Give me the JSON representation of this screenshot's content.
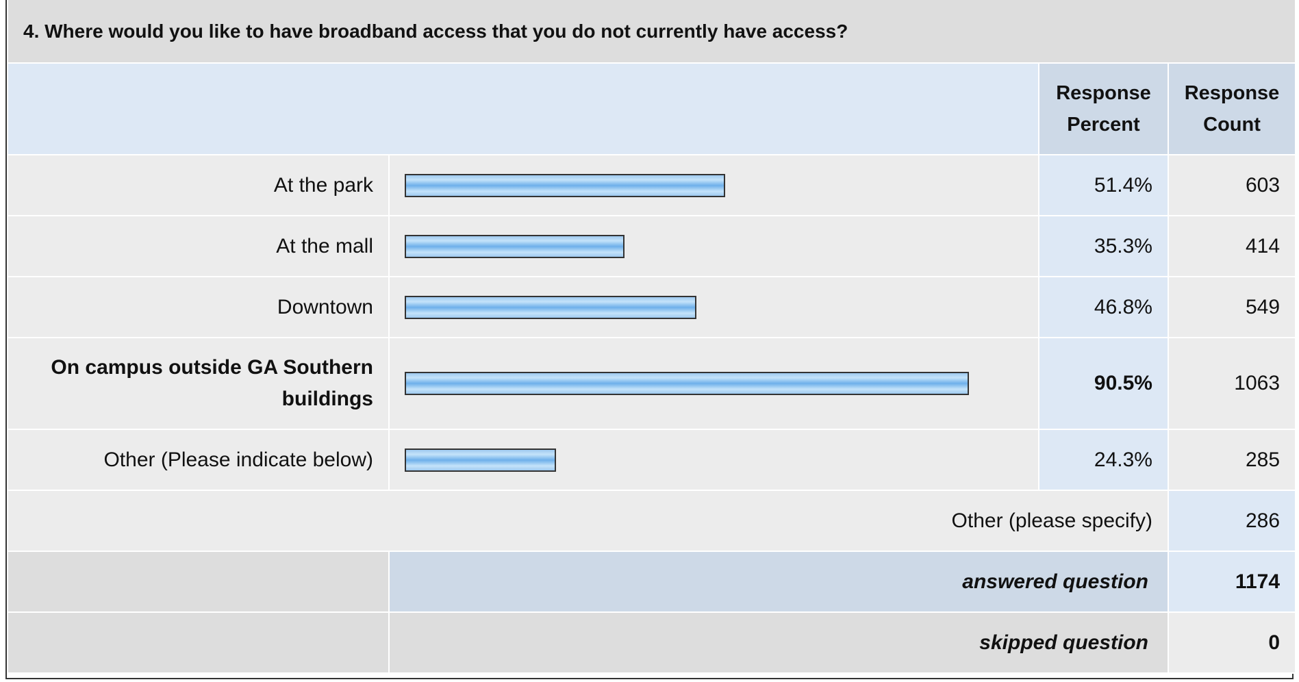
{
  "question": {
    "title": "4. Where would you like to have broadband access that you do not currently have access?"
  },
  "headers": {
    "response_percent": [
      "Response",
      "Percent"
    ],
    "response_count": [
      "Response",
      "Count"
    ]
  },
  "chart_data": {
    "type": "bar",
    "orientation": "horizontal",
    "categories": [
      "At the park",
      "At the mall",
      "Downtown",
      "On campus outside GA Southern buildings",
      "Other (Please indicate below)"
    ],
    "percent_labels": [
      "51.4%",
      "35.3%",
      "46.8%",
      "90.5%",
      "24.3%"
    ],
    "values": [
      51.4,
      35.3,
      46.8,
      90.5,
      24.3
    ],
    "counts": [
      "603",
      "414",
      "549",
      "1063",
      "285"
    ],
    "bold_index": 3,
    "xlim": [
      0,
      100
    ]
  },
  "other_specify": {
    "label": "Other (please specify)",
    "count": "286"
  },
  "summary": {
    "answered_label": "answered question",
    "answered_value": "1174",
    "skipped_label": "skipped question",
    "skipped_value": "0"
  },
  "colors": {
    "bar_fill": "#6eb0ea",
    "header_bg": "#dde8f5",
    "title_bg": "#dddddd"
  }
}
